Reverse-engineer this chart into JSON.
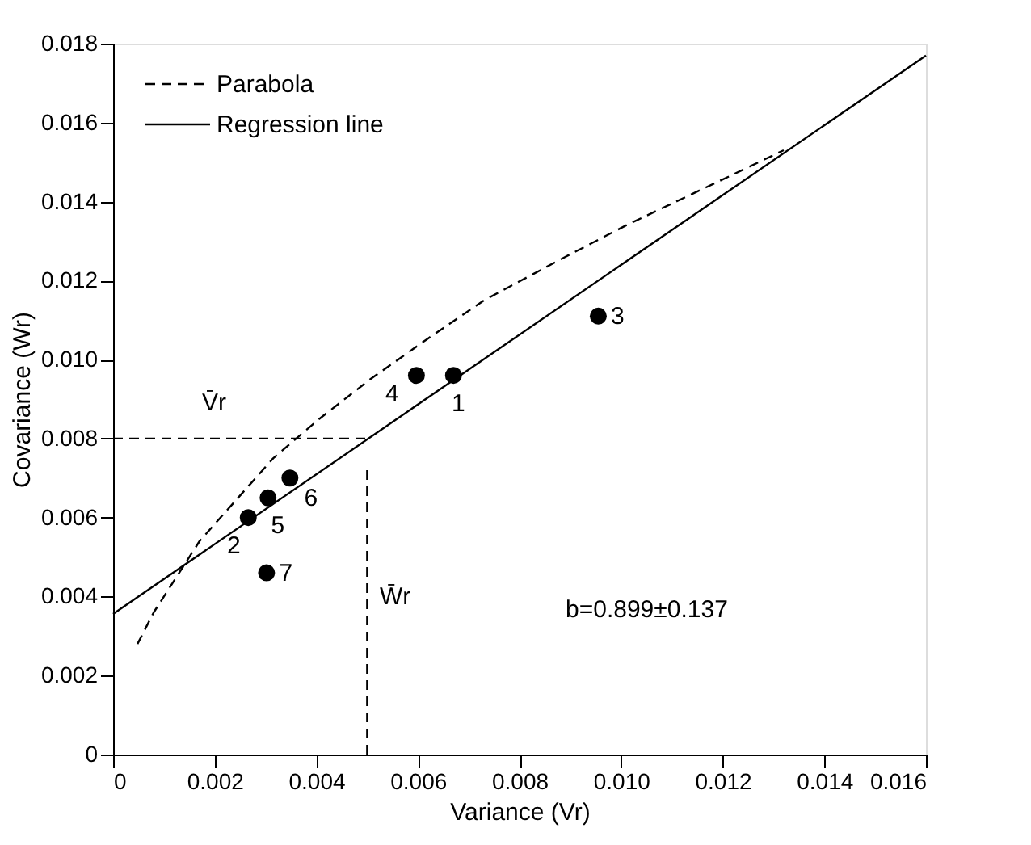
{
  "chart_data": {
    "type": "scatter",
    "xlabel": "Variance (Vr)",
    "ylabel": "Covariance (Wr)",
    "xlim": [
      0,
      0.016
    ],
    "ylim": [
      0,
      0.018
    ],
    "xticks": [
      0,
      0.002,
      0.004,
      0.006,
      0.008,
      {
        "value": 0.01,
        "label": "0.010"
      },
      0.012,
      0.014,
      0.016
    ],
    "yticks": [
      0,
      0.002,
      0.004,
      0.006,
      0.008,
      {
        "value": 0.01,
        "label": "0.010"
      },
      0.012,
      0.014,
      0.016,
      0.018
    ],
    "grid": false,
    "legend": "top left",
    "series": [
      {
        "name": "Parabola",
        "type": "line",
        "line_style": "dashed",
        "marker": "none",
        "color": "#000000",
        "x": [
          0.00048,
          0.0008,
          0.0017,
          0.00315,
          0.00406,
          0.00506,
          0.00616,
          0.0073,
          0.0089,
          0.0101,
          0.0119,
          0.0132
        ],
        "values": [
          0.0028,
          0.0036,
          0.0054,
          0.0075,
          0.0085,
          0.0095,
          0.0105,
          0.0115,
          0.0126,
          0.0134,
          0.0145,
          0.0153
        ]
      },
      {
        "name": "Regression line",
        "type": "line",
        "line_style": "solid",
        "marker": "none",
        "color": "#000000",
        "x": [
          0,
          0.016
        ],
        "values": [
          0.00356,
          0.0177
        ]
      },
      {
        "type": "scatter",
        "marker": "circle",
        "color": "#000000",
        "x": [
          0.0067,
          0.00266,
          0.00955,
          0.00597,
          0.00305,
          0.00348,
          0.00302
        ],
        "values": [
          0.0096,
          0.006,
          0.0111,
          0.0096,
          0.0065,
          0.007,
          0.0046
        ]
      },
      {
        "type": "line",
        "line_style": "dashed",
        "marker": "none",
        "color": "#000000",
        "x": [
          0,
          0.005
        ],
        "values": [
          0.008,
          0.008
        ]
      },
      {
        "type": "line",
        "line_style": "dashed",
        "marker": "none",
        "color": "#000000",
        "x": [
          0.005,
          0.005
        ],
        "values": [
          0,
          0.0072
        ]
      }
    ],
    "annotations": [
      "1",
      "2",
      "3",
      "4",
      "5",
      "6",
      "7",
      "V̄r",
      "W̄r",
      "b=0.899±0.137"
    ]
  }
}
